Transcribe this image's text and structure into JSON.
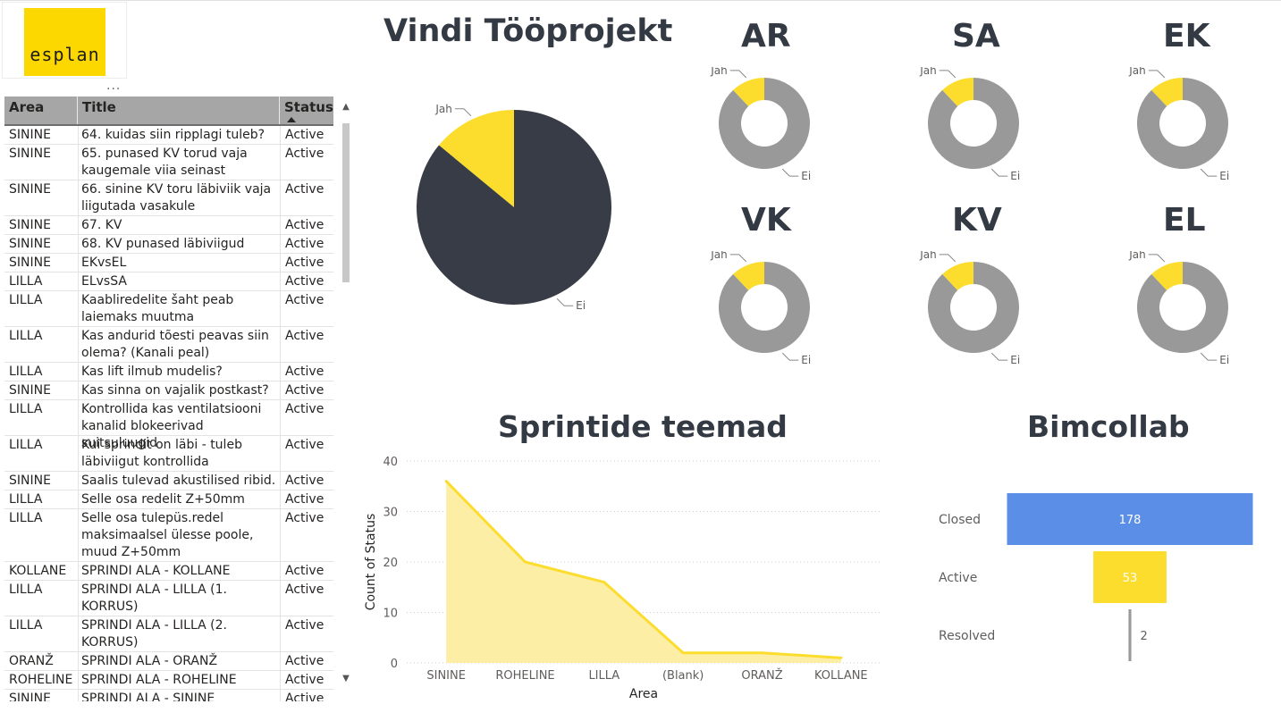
{
  "logo": {
    "text": "esplan",
    "color": "#fcd800"
  },
  "visual_menu": "...",
  "table": {
    "headers": [
      "Area",
      "Title",
      "Status"
    ],
    "rows": [
      {
        "area": "SININE",
        "title": [
          "64. kuidas siin ripplagi tuleb?"
        ],
        "status": "Active"
      },
      {
        "area": "SININE",
        "title": [
          "65. punased KV torud vaja",
          "kaugemale viia seinast"
        ],
        "status": "Active"
      },
      {
        "area": "SININE",
        "title": [
          "66. sinine KV toru läbiviik vaja",
          "liigutada vasakule"
        ],
        "status": "Active"
      },
      {
        "area": "SININE",
        "title": [
          "67. KV"
        ],
        "status": "Active"
      },
      {
        "area": "SININE",
        "title": [
          "68. KV punased läbiviigud"
        ],
        "status": "Active"
      },
      {
        "area": "SININE",
        "title": [
          "EKvsEL"
        ],
        "status": "Active"
      },
      {
        "area": "LILLA",
        "title": [
          "ELvsSA"
        ],
        "status": "Active"
      },
      {
        "area": "LILLA",
        "title": [
          "Kaabliredelite šaht peab",
          "laiemaks muutma"
        ],
        "status": "Active"
      },
      {
        "area": "LILLA",
        "title": [
          "Kas andurid tõesti peavas siin",
          "olema? (Kanali peal)"
        ],
        "status": "Active"
      },
      {
        "area": "LILLA",
        "title": [
          "Kas lift ilmub mudelis?"
        ],
        "status": "Active"
      },
      {
        "area": "SININE",
        "title": [
          "Kas sinna on vajalik postkast?"
        ],
        "status": "Active"
      },
      {
        "area": "LILLA",
        "title": [
          "Kontrollida kas ventilatsiooni",
          "kanalid blokeerivad suitsuluugid"
        ],
        "status": "Active"
      },
      {
        "area": "LILLA",
        "title": [
          "Kui sprindit on läbi - tuleb",
          "läbiviigut kontrollida"
        ],
        "status": "Active"
      },
      {
        "area": "SININE",
        "title": [
          "Saalis tulevad akustilised ribid."
        ],
        "status": "Active"
      },
      {
        "area": "LILLA",
        "title": [
          "Selle osa redelit Z+50mm"
        ],
        "status": "Active"
      },
      {
        "area": "LILLA",
        "title": [
          "Selle osa tulepüs.redel",
          "maksimaalsel ülesse poole,",
          "muud Z+50mm"
        ],
        "status": "Active"
      },
      {
        "area": "KOLLANE",
        "title": [
          "SPRINDI ALA - KOLLANE"
        ],
        "status": "Active"
      },
      {
        "area": "LILLA",
        "title": [
          "SPRINDI ALA - LILLA (1.",
          "KORRUS)"
        ],
        "status": "Active"
      },
      {
        "area": "LILLA",
        "title": [
          "SPRINDI ALA - LILLA (2.",
          "KORRUS)"
        ],
        "status": "Active"
      },
      {
        "area": "ORANŽ",
        "title": [
          "SPRINDI ALA - ORANŽ"
        ],
        "status": "Active"
      },
      {
        "area": "ROHELINE",
        "title": [
          "SPRINDI ALA - ROHELINE"
        ],
        "status": "Active"
      },
      {
        "area": "SININE",
        "title": [
          "SPRINDI ALA - SININE"
        ],
        "status": "Active"
      }
    ]
  },
  "colors": {
    "dark": "#373c46",
    "yellow": "#fcdd2e",
    "gray": "#999999",
    "blue": "#5b8ee6",
    "area_fill": "#fdeea6"
  },
  "chart_data": [
    {
      "type": "pie",
      "title": "Vindi Tööprojekt",
      "labels": [
        "Jah",
        "Ei"
      ],
      "values": [
        14,
        86
      ]
    },
    {
      "type": "pie",
      "donut": true,
      "title": "AR",
      "labels": [
        "Jah",
        "Ei"
      ],
      "values": [
        12,
        88
      ]
    },
    {
      "type": "pie",
      "donut": true,
      "title": "SA",
      "labels": [
        "Jah",
        "Ei"
      ],
      "values": [
        12,
        88
      ]
    },
    {
      "type": "pie",
      "donut": true,
      "title": "EK",
      "labels": [
        "Jah",
        "Ei"
      ],
      "values": [
        12,
        88
      ]
    },
    {
      "type": "pie",
      "donut": true,
      "title": "VK",
      "labels": [
        "Jah",
        "Ei"
      ],
      "values": [
        12,
        88
      ]
    },
    {
      "type": "pie",
      "donut": true,
      "title": "KV",
      "labels": [
        "Jah",
        "Ei"
      ],
      "values": [
        12,
        88
      ]
    },
    {
      "type": "pie",
      "donut": true,
      "title": "EL",
      "labels": [
        "Jah",
        "Ei"
      ],
      "values": [
        12,
        88
      ]
    },
    {
      "type": "area",
      "title": "Sprintide teemad",
      "xlabel": "Area",
      "ylabel": "Count of Status",
      "categories": [
        "SININE",
        "ROHELINE",
        "LILLA",
        "(Blank)",
        "ORANŽ",
        "KOLLANE"
      ],
      "values": [
        36,
        20,
        16,
        2,
        2,
        1
      ],
      "ylim": [
        0,
        40
      ],
      "yticks": [
        0,
        10,
        20,
        30,
        40
      ],
      "grid": true
    },
    {
      "type": "bar",
      "orientation": "horizontal-funnel",
      "title": "Bimcollab",
      "categories": [
        "Closed",
        "Active",
        "Resolved"
      ],
      "values": [
        178,
        53,
        2
      ],
      "colors": [
        "#5b8ee6",
        "#fcdd2e",
        "#999999"
      ]
    }
  ]
}
